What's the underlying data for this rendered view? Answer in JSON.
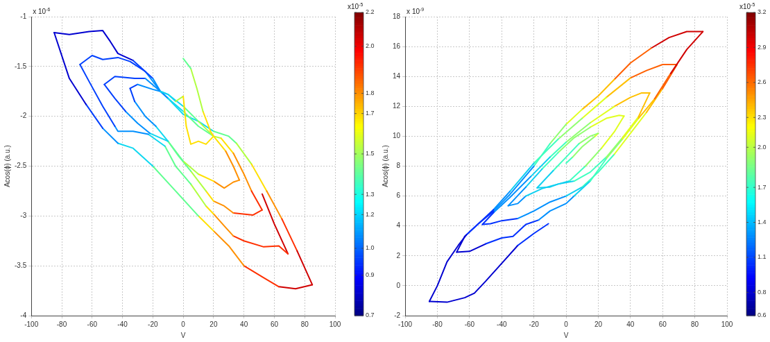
{
  "chart_data": [
    {
      "type": "line",
      "xlabel": "V",
      "ylabel": "Acos(ϕ) (a.u.)",
      "annotations": [
        "x 10$^{-6}$"
      ],
      "clabel": "x10$^{-5}$",
      "grid": true,
      "xlim": [
        -100,
        100
      ],
      "xticks": [
        -100,
        -80,
        -60,
        -40,
        -20,
        0,
        20,
        40,
        60,
        80,
        100
      ],
      "ylim": [
        -4,
        -1
      ],
      "yticks": [
        -4,
        -3.5,
        -3,
        -2.5,
        -2,
        -1.5,
        -1
      ],
      "clim": [
        0.7,
        2.2
      ],
      "cticks": [
        0.7,
        0.9,
        {
          "value": 1.033,
          "label": "1.0"
        },
        1.2,
        1.3,
        1.5,
        1.7,
        1.8,
        {
          "value": 2.033,
          "label": "2.0"
        },
        2.2
      ],
      "series": [
        {
          "color": "#60ff90",
          "x": [
            0,
            5
          ],
          "values": [
            -1.42,
            -1.52
          ]
        },
        {
          "color": "#b0ff40",
          "x": [
            5,
            9,
            13
          ],
          "values": [
            -1.52,
            -1.72,
            -1.95
          ]
        },
        {
          "color": "#ffe000",
          "x": [
            13,
            18,
            20,
            15,
            10,
            5,
            2,
            0
          ],
          "values": [
            -1.95,
            -2.15,
            -2.2,
            -2.28,
            -2.25,
            -2.28,
            -2.1,
            -1.8
          ]
        },
        {
          "color": "#b0ff40",
          "x": [
            0,
            -5
          ],
          "values": [
            -1.8,
            -1.85
          ]
        },
        {
          "color": "#10d8f0",
          "x": [
            -5,
            -10,
            -15
          ],
          "values": [
            -1.85,
            -1.78,
            -1.75
          ]
        },
        {
          "color": "#0090ff",
          "x": [
            -15,
            -20,
            -30
          ],
          "values": [
            -1.75,
            -1.73,
            -1.68
          ]
        },
        {
          "color": "#0040ff",
          "x": [
            -30,
            -35
          ],
          "values": [
            -1.68,
            -1.72
          ]
        },
        {
          "color": "#0040ff",
          "x": [
            -35,
            -32
          ],
          "values": [
            -1.72,
            -1.85
          ]
        },
        {
          "color": "#0090ff",
          "x": [
            -32,
            -25,
            -18
          ],
          "values": [
            -1.85,
            -2.0,
            -2.1
          ]
        },
        {
          "color": "#10d8f0",
          "x": [
            -18,
            -10
          ],
          "values": [
            -2.1,
            -2.25
          ]
        },
        {
          "color": "#60ff90",
          "x": [
            -10,
            0
          ],
          "values": [
            -2.25,
            -2.45
          ]
        },
        {
          "color": "#b0ff40",
          "x": [
            0,
            10
          ],
          "values": [
            -2.45,
            -2.58
          ]
        },
        {
          "color": "#ffe000",
          "x": [
            10,
            20
          ],
          "values": [
            -2.58,
            -2.65
          ]
        },
        {
          "color": "#ff9000",
          "x": [
            20,
            27,
            33,
            37
          ],
          "values": [
            -2.65,
            -2.72,
            -2.66,
            -2.64
          ]
        },
        {
          "color": "#ff9000",
          "x": [
            37,
            33,
            28
          ],
          "values": [
            -2.64,
            -2.5,
            -2.35
          ]
        },
        {
          "color": "#ffe000",
          "x": [
            28,
            20
          ],
          "values": [
            -2.35,
            -2.2
          ]
        },
        {
          "color": "#b0ff40",
          "x": [
            20,
            10
          ],
          "values": [
            -2.2,
            -2.05
          ]
        },
        {
          "color": "#60ff90",
          "x": [
            10,
            0
          ],
          "values": [
            -2.05,
            -1.9
          ]
        },
        {
          "color": "#10d8f0",
          "x": [
            0,
            -10
          ],
          "values": [
            -1.9,
            -1.78
          ]
        },
        {
          "color": "#0090ff",
          "x": [
            -10,
            -15,
            -25
          ],
          "values": [
            -1.78,
            -1.75,
            -1.62
          ]
        },
        {
          "color": "#0040ff",
          "x": [
            -25,
            -32,
            -45,
            -52
          ],
          "values": [
            -1.62,
            -1.62,
            -1.6,
            -1.68
          ]
        },
        {
          "color": "#0040ff",
          "x": [
            -52,
            -45,
            -38
          ],
          "values": [
            -1.68,
            -1.82,
            -1.95
          ]
        },
        {
          "color": "#0090ff",
          "x": [
            -38,
            -30,
            -22
          ],
          "values": [
            -1.95,
            -2.07,
            -2.17
          ]
        },
        {
          "color": "#10d8f0",
          "x": [
            -22,
            -10
          ],
          "values": [
            -2.17,
            -2.25
          ]
        },
        {
          "color": "#60ff90",
          "x": [
            -10,
            -3,
            5
          ],
          "values": [
            -2.25,
            -2.4,
            -2.55
          ]
        },
        {
          "color": "#b0ff40",
          "x": [
            5,
            15
          ],
          "values": [
            -2.55,
            -2.75
          ]
        },
        {
          "color": "#ffe000",
          "x": [
            15,
            20
          ],
          "values": [
            -2.75,
            -2.85
          ]
        },
        {
          "color": "#ff9000",
          "x": [
            20,
            27,
            33
          ],
          "values": [
            -2.85,
            -2.9,
            -2.97
          ]
        },
        {
          "color": "#ff3000",
          "x": [
            33,
            46,
            52
          ],
          "values": [
            -2.97,
            -2.99,
            -2.94
          ]
        },
        {
          "color": "#ff3000",
          "x": [
            52,
            45
          ],
          "values": [
            -2.94,
            -2.75
          ]
        },
        {
          "color": "#ff9000",
          "x": [
            45,
            40,
            33
          ],
          "values": [
            -2.75,
            -2.58,
            -2.37
          ]
        },
        {
          "color": "#ffe000",
          "x": [
            33,
            25
          ],
          "values": [
            -2.37,
            -2.22
          ]
        },
        {
          "color": "#b0ff40",
          "x": [
            25,
            20
          ],
          "values": [
            -2.22,
            -2.2
          ]
        },
        {
          "color": "#60ff90",
          "x": [
            20,
            10,
            0
          ],
          "values": [
            -2.2,
            -2.1,
            -1.95
          ]
        },
        {
          "color": "#10d8f0",
          "x": [
            0,
            -10
          ],
          "values": [
            -1.95,
            -1.82
          ]
        },
        {
          "color": "#0090ff",
          "x": [
            -10,
            -15,
            -20
          ],
          "values": [
            -1.82,
            -1.75,
            -1.62
          ]
        },
        {
          "color": "#0040ff",
          "x": [
            -20,
            -33
          ],
          "values": [
            -1.62,
            -1.44
          ]
        },
        {
          "color": "#0000d0",
          "x": [
            -33,
            -43,
            -48,
            -53,
            -62,
            -75,
            -85
          ],
          "values": [
            -1.44,
            -1.37,
            -1.25,
            -1.14,
            -1.15,
            -1.18,
            -1.16
          ]
        },
        {
          "color": "#0000d0",
          "x": [
            -85,
            -75,
            -64
          ],
          "values": [
            -1.16,
            -1.62,
            -1.88
          ]
        },
        {
          "color": "#0040ff",
          "x": [
            -64,
            -53
          ],
          "values": [
            -1.88,
            -2.12
          ]
        },
        {
          "color": "#0090ff",
          "x": [
            -53,
            -43
          ],
          "values": [
            -2.12,
            -2.27
          ]
        },
        {
          "color": "#10d8f0",
          "x": [
            -43,
            -33,
            -20
          ],
          "values": [
            -2.27,
            -2.32,
            -2.5
          ]
        },
        {
          "color": "#60ff90",
          "x": [
            -20,
            -5,
            10
          ],
          "values": [
            -2.5,
            -2.75,
            -3.0
          ]
        },
        {
          "color": "#ffe000",
          "x": [
            10,
            20
          ],
          "values": [
            -3.0,
            -3.15
          ]
        },
        {
          "color": "#ff9000",
          "x": [
            20,
            30,
            40
          ],
          "values": [
            -3.15,
            -3.3,
            -3.5
          ]
        },
        {
          "color": "#ff3000",
          "x": [
            40,
            53,
            63
          ],
          "values": [
            -3.5,
            -3.62,
            -3.71
          ]
        },
        {
          "color": "#d00000",
          "x": [
            63,
            74,
            85
          ],
          "values": [
            -3.71,
            -3.73,
            -3.69
          ]
        },
        {
          "color": "#d00000",
          "x": [
            85,
            75
          ],
          "values": [
            -3.69,
            -3.35
          ]
        },
        {
          "color": "#ff3000",
          "x": [
            75,
            65
          ],
          "values": [
            -3.35,
            -3.03
          ]
        },
        {
          "color": "#ff9000",
          "x": [
            65,
            55
          ],
          "values": [
            -3.03,
            -2.75
          ]
        },
        {
          "color": "#ffe000",
          "x": [
            55,
            45
          ],
          "values": [
            -2.75,
            -2.48
          ]
        },
        {
          "color": "#b0ff40",
          "x": [
            45,
            35
          ],
          "values": [
            -2.48,
            -2.27
          ]
        },
        {
          "color": "#60ff90",
          "x": [
            35,
            30,
            20
          ],
          "values": [
            -2.27,
            -2.2,
            -2.15
          ]
        },
        {
          "color": "#10d8f0",
          "x": [
            20,
            10,
            0,
            -10
          ],
          "values": [
            -2.15,
            -2.05,
            -1.98,
            -1.82
          ]
        },
        {
          "color": "#0090ff",
          "x": [
            -10,
            -15,
            -25
          ],
          "values": [
            -1.82,
            -1.75,
            -1.55
          ]
        },
        {
          "color": "#0040ff",
          "x": [
            -25,
            -35,
            -43,
            -53,
            -60,
            -68
          ],
          "values": [
            -1.55,
            -1.45,
            -1.41,
            -1.43,
            -1.39,
            -1.48
          ]
        },
        {
          "color": "#0040ff",
          "x": [
            -68,
            -62,
            -53,
            -45
          ],
          "values": [
            -1.48,
            -1.65,
            -1.9,
            -2.1
          ]
        },
        {
          "color": "#0090ff",
          "x": [
            -45,
            -43,
            -33,
            -23
          ],
          "values": [
            -2.1,
            -2.15,
            -2.15,
            -2.18
          ]
        },
        {
          "color": "#10d8f0",
          "x": [
            -23,
            -12
          ],
          "values": [
            -2.18,
            -2.3
          ]
        },
        {
          "color": "#60ff90",
          "x": [
            -12,
            -5,
            5
          ],
          "values": [
            -2.3,
            -2.5,
            -2.68
          ]
        },
        {
          "color": "#b0ff40",
          "x": [
            5,
            15
          ],
          "values": [
            -2.68,
            -2.9
          ]
        },
        {
          "color": "#ffe000",
          "x": [
            15,
            20
          ],
          "values": [
            -2.9,
            -2.98
          ]
        },
        {
          "color": "#ff9000",
          "x": [
            20,
            27,
            33
          ],
          "values": [
            -2.98,
            -3.1,
            -3.2
          ]
        },
        {
          "color": "#ff3000",
          "x": [
            33,
            40,
            53,
            63,
            69
          ],
          "values": [
            -3.2,
            -3.25,
            -3.31,
            -3.3,
            -3.38
          ]
        },
        {
          "color": "#d00000",
          "x": [
            69,
            60,
            52
          ],
          "values": [
            -3.38,
            -3.08,
            -2.78
          ]
        }
      ]
    },
    {
      "type": "line",
      "xlabel": "V",
      "ylabel": "Acos(ϕ) (a.u.)",
      "annotations": [
        "x 10$^{-9}$"
      ],
      "clabel": "x10$^{-5}$",
      "grid": true,
      "xlim": [
        -100,
        100
      ],
      "xticks": [
        -100,
        -80,
        -60,
        -40,
        -20,
        0,
        20,
        40,
        60,
        80,
        100
      ],
      "ylim": [
        -2,
        18
      ],
      "yticks": [
        -2,
        0,
        2,
        4,
        6,
        8,
        10,
        12,
        14,
        16,
        18
      ],
      "clim": [
        0.6,
        3.2
      ],
      "cticks": [
        0.6,
        0.8,
        1.1,
        1.4,
        1.7,
        {
          "value": 2.044,
          "label": "2.0"
        },
        2.3,
        2.6,
        2.9,
        3.2
      ],
      "series": [
        {
          "color": "#0030ff",
          "x": [
            -11,
            -20,
            -30
          ],
          "values": [
            4.15,
            3.5,
            2.7
          ]
        },
        {
          "color": "#0000d0",
          "x": [
            -30,
            -40,
            -50,
            -57,
            -63,
            -74,
            -85
          ],
          "values": [
            2.7,
            1.5,
            0.3,
            -0.5,
            -0.8,
            -1.1,
            -1.05
          ]
        },
        {
          "color": "#0000d0",
          "x": [
            -85,
            -80,
            -74,
            -67,
            -62
          ],
          "values": [
            -1.05,
            0,
            1.6,
            2.7,
            3.4
          ]
        },
        {
          "color": "#0030ff",
          "x": [
            -62,
            -55,
            -45
          ],
          "values": [
            3.4,
            4.1,
            5.0
          ]
        },
        {
          "color": "#0090ff",
          "x": [
            -45,
            -35,
            -20
          ],
          "values": [
            5.0,
            6.1,
            8
          ]
        },
        {
          "color": "#40ffc0",
          "x": [
            -20,
            -10
          ],
          "values": [
            8,
            9.5
          ]
        },
        {
          "color": "#90ff70",
          "x": [
            -10,
            0
          ],
          "values": [
            9.5,
            10.8
          ]
        },
        {
          "color": "#e0ff20",
          "x": [
            0,
            10
          ],
          "values": [
            10.8,
            11.8
          ]
        },
        {
          "color": "#ffc000",
          "x": [
            10,
            20,
            30
          ],
          "values": [
            11.8,
            12.7,
            13.8
          ]
        },
        {
          "color": "#ff6000",
          "x": [
            30,
            40,
            53
          ],
          "values": [
            13.8,
            14.9,
            15.9
          ]
        },
        {
          "color": "#d00000",
          "x": [
            53,
            64,
            75,
            85
          ],
          "values": [
            15.9,
            16.6,
            17,
            17
          ]
        },
        {
          "color": "#d00000",
          "x": [
            85,
            75,
            65
          ],
          "values": [
            17,
            15.8,
            14.2
          ]
        },
        {
          "color": "#ff6000",
          "x": [
            65,
            55
          ],
          "values": [
            14.2,
            12.5
          ]
        },
        {
          "color": "#ffc000",
          "x": [
            55,
            45
          ],
          "values": [
            12.5,
            11.2
          ]
        },
        {
          "color": "#e0ff20",
          "x": [
            45,
            35
          ],
          "values": [
            11.2,
            9.8
          ]
        },
        {
          "color": "#90ff70",
          "x": [
            35,
            25
          ],
          "values": [
            9.8,
            8.5
          ]
        },
        {
          "color": "#40ffc0",
          "x": [
            25,
            15
          ],
          "values": [
            8.5,
            7.0
          ]
        },
        {
          "color": "#10d0f0",
          "x": [
            15,
            5
          ],
          "values": [
            7.0,
            6.0
          ]
        },
        {
          "color": "#0090ff",
          "x": [
            5,
            0,
            -10,
            -17
          ],
          "values": [
            6.0,
            5.5,
            5.0,
            4.4
          ]
        },
        {
          "color": "#0030ff",
          "x": [
            -17,
            -25,
            -33,
            -40,
            -50
          ],
          "values": [
            4.4,
            4.1,
            3.3,
            3.2,
            2.8
          ]
        },
        {
          "color": "#0000d0",
          "x": [
            -50,
            -60,
            -68
          ],
          "values": [
            2.8,
            2.3,
            2.25
          ]
        },
        {
          "color": "#0000d0",
          "x": [
            -68,
            -63
          ],
          "values": [
            2.25,
            3.3
          ]
        },
        {
          "color": "#0030ff",
          "x": [
            -63,
            -56,
            -45
          ],
          "values": [
            3.3,
            4.0,
            5.1
          ]
        },
        {
          "color": "#0090ff",
          "x": [
            -45,
            -35
          ],
          "values": [
            5.1,
            6.3
          ]
        },
        {
          "color": "#10d0f0",
          "x": [
            -35,
            -20
          ],
          "values": [
            6.3,
            8.2
          ]
        },
        {
          "color": "#40ffc0",
          "x": [
            -20,
            -5
          ],
          "values": [
            8.2,
            9.8
          ]
        },
        {
          "color": "#90ff70",
          "x": [
            -5,
            10
          ],
          "values": [
            9.8,
            11.2
          ]
        },
        {
          "color": "#e0ff20",
          "x": [
            10,
            25
          ],
          "values": [
            11.2,
            12.6
          ]
        },
        {
          "color": "#ffc000",
          "x": [
            25,
            40
          ],
          "values": [
            12.6,
            13.9
          ]
        },
        {
          "color": "#ff6000",
          "x": [
            40,
            50,
            60,
            69
          ],
          "values": [
            13.9,
            14.4,
            14.8,
            14.8
          ]
        },
        {
          "color": "#ff6000",
          "x": [
            69,
            60
          ],
          "values": [
            14.8,
            13.2
          ]
        },
        {
          "color": "#ffc000",
          "x": [
            60,
            50
          ],
          "values": [
            13.2,
            11.6
          ]
        },
        {
          "color": "#e0ff20",
          "x": [
            50,
            40,
            30
          ],
          "values": [
            11.6,
            10.2,
            8.8
          ]
        },
        {
          "color": "#40ffc0",
          "x": [
            30,
            20,
            10
          ],
          "values": [
            8.8,
            7.6,
            6.6
          ]
        },
        {
          "color": "#10d0f0",
          "x": [
            10,
            0
          ],
          "values": [
            6.6,
            6.0
          ]
        },
        {
          "color": "#0090ff",
          "x": [
            0,
            -10,
            -20,
            -30
          ],
          "values": [
            6.0,
            5.6,
            5.0,
            4.5
          ]
        },
        {
          "color": "#0030ff",
          "x": [
            -30,
            -40,
            -47,
            -52
          ],
          "values": [
            4.5,
            4.35,
            4.15,
            4.1
          ]
        },
        {
          "color": "#0030ff",
          "x": [
            -52,
            -45
          ],
          "values": [
            4.1,
            4.9
          ]
        },
        {
          "color": "#0090ff",
          "x": [
            -45,
            -35,
            -22
          ],
          "values": [
            4.9,
            5.9,
            7.3
          ]
        },
        {
          "color": "#10d0f0",
          "x": [
            -22,
            -10
          ],
          "values": [
            7.3,
            8.6
          ]
        },
        {
          "color": "#40ffc0",
          "x": [
            -10,
            0
          ],
          "values": [
            8.6,
            9.6
          ]
        },
        {
          "color": "#90ff70",
          "x": [
            0,
            15
          ],
          "values": [
            9.6,
            10.9
          ]
        },
        {
          "color": "#e0ff20",
          "x": [
            15,
            30
          ],
          "values": [
            10.9,
            12.0
          ]
        },
        {
          "color": "#ffc000",
          "x": [
            30,
            40,
            47,
            52
          ],
          "values": [
            12.0,
            12.6,
            12.9,
            12.9
          ]
        },
        {
          "color": "#ffc000",
          "x": [
            52,
            45
          ],
          "values": [
            12.9,
            11.3
          ]
        },
        {
          "color": "#e0ff20",
          "x": [
            45,
            35
          ],
          "values": [
            11.3,
            9.9
          ]
        },
        {
          "color": "#90ff70",
          "x": [
            35,
            25
          ],
          "values": [
            9.9,
            8.6
          ]
        },
        {
          "color": "#40ffc0",
          "x": [
            25,
            15,
            5
          ],
          "values": [
            8.6,
            7.6,
            7.0
          ]
        },
        {
          "color": "#10d0f0",
          "x": [
            5,
            -5,
            -15,
            -25
          ],
          "values": [
            7.0,
            6.8,
            6.5,
            6.0
          ]
        },
        {
          "color": "#0090ff",
          "x": [
            -25,
            -30,
            -36
          ],
          "values": [
            6.0,
            5.5,
            5.35
          ]
        },
        {
          "color": "#0090ff",
          "x": [
            -36,
            -25
          ],
          "values": [
            5.35,
            6.6
          ]
        },
        {
          "color": "#10d0f0",
          "x": [
            -25,
            -15
          ],
          "values": [
            6.6,
            7.8
          ]
        },
        {
          "color": "#40ffc0",
          "x": [
            -15,
            -5
          ],
          "values": [
            7.8,
            8.9
          ]
        },
        {
          "color": "#90ff70",
          "x": [
            -5,
            5,
            15
          ],
          "values": [
            8.9,
            9.9,
            10.6
          ]
        },
        {
          "color": "#e0ff20",
          "x": [
            15,
            25,
            33,
            36
          ],
          "values": [
            10.6,
            11.2,
            11.4,
            11.35
          ]
        },
        {
          "color": "#e0ff20",
          "x": [
            36,
            30,
            22
          ],
          "values": [
            11.35,
            10.3,
            9.2
          ]
        },
        {
          "color": "#90ff70",
          "x": [
            22,
            12
          ],
          "values": [
            9.2,
            8.0
          ]
        },
        {
          "color": "#40ffc0",
          "x": [
            12,
            2
          ],
          "values": [
            8.0,
            7.0
          ]
        },
        {
          "color": "#10d0f0",
          "x": [
            2,
            -5,
            -10,
            -18
          ],
          "values": [
            7.0,
            6.8,
            6.6,
            6.55
          ]
        },
        {
          "color": "#10d0f0",
          "x": [
            -18,
            -8
          ],
          "values": [
            6.55,
            7.7
          ]
        },
        {
          "color": "#40ffc0",
          "x": [
            -8,
            0,
            8
          ],
          "values": [
            7.7,
            8.6,
            9.5
          ]
        },
        {
          "color": "#90ff70",
          "x": [
            8,
            15,
            20
          ],
          "values": [
            9.5,
            10.0,
            10.2
          ]
        },
        {
          "color": "#e0ff20",
          "x": [
            20,
            18
          ],
          "values": [
            10.2,
            10.0
          ]
        },
        {
          "color": "#90ff70",
          "x": [
            18,
            10,
            4
          ],
          "values": [
            10.0,
            9.3,
            8.6
          ]
        },
        {
          "color": "#40ffc0",
          "x": [
            4,
            0
          ],
          "values": [
            8.6,
            8.2
          ]
        }
      ]
    }
  ]
}
